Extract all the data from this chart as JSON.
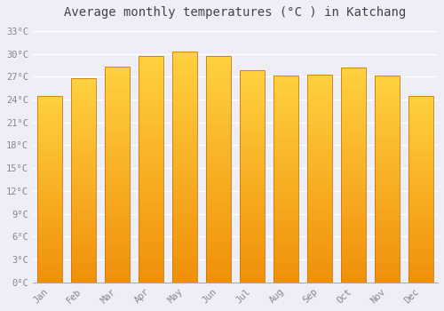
{
  "title": "Average monthly temperatures (°C ) in Katchang",
  "months": [
    "Jan",
    "Feb",
    "Mar",
    "Apr",
    "May",
    "Jun",
    "Jul",
    "Aug",
    "Sep",
    "Oct",
    "Nov",
    "Dec"
  ],
  "values": [
    24.5,
    26.8,
    28.3,
    29.7,
    30.3,
    29.7,
    27.9,
    27.2,
    27.3,
    28.2,
    27.1,
    24.5
  ],
  "bar_color_top": "#FFD040",
  "bar_color_bottom": "#F0900A",
  "bar_edge_color": "#D07800",
  "background_color": "#EEEEF8",
  "plot_bg_color": "#EEEEF8",
  "grid_color": "#FFFFFF",
  "ytick_labels": [
    "0°C",
    "3°C",
    "6°C",
    "9°C",
    "12°C",
    "15°C",
    "18°C",
    "21°C",
    "24°C",
    "27°C",
    "30°C",
    "33°C"
  ],
  "ytick_values": [
    0,
    3,
    6,
    9,
    12,
    15,
    18,
    21,
    24,
    27,
    30,
    33
  ],
  "ylim": [
    0,
    34
  ],
  "title_fontsize": 10,
  "tick_fontsize": 7.5,
  "title_color": "#444444",
  "tick_color": "#888888",
  "font_family": "monospace"
}
